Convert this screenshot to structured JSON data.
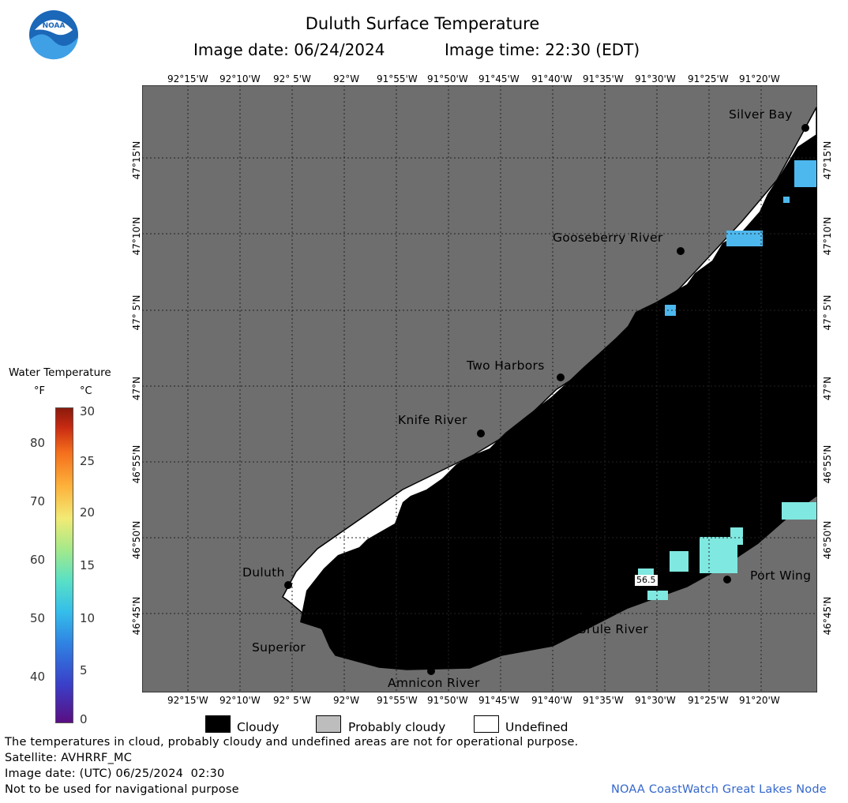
{
  "header": {
    "title": "Duluth Surface Temperature",
    "image_date": "Image date: 06/24/2024",
    "image_time": "Image time: 22:30 (EDT)",
    "logo_text": "NOAA"
  },
  "map": {
    "lon_ticks": [
      "92°15'W",
      "92°10'W",
      "92° 5'W",
      "92°W",
      "91°55'W",
      "91°50'W",
      "91°45'W",
      "91°40'W",
      "91°35'W",
      "91°30'W",
      "91°25'W",
      "91°20'W"
    ],
    "lat_ticks": [
      "47°15'N",
      "47°10'N",
      "47° 5'N",
      "47°N",
      "46°55'N",
      "46°50'N",
      "46°45'N"
    ],
    "places": [
      {
        "name": "Silver Bay"
      },
      {
        "name": "Gooseberry River"
      },
      {
        "name": "Two Harbors"
      },
      {
        "name": "Knife River"
      },
      {
        "name": "Duluth"
      },
      {
        "name": "Superior"
      },
      {
        "name": "Amnicon River"
      },
      {
        "name": "Brule River"
      },
      {
        "name": "Port Wing"
      }
    ],
    "temperature_label": "56.5",
    "colors": {
      "land": "#6e6e6e",
      "cloud": "#000000",
      "undefined": "#ffffff",
      "warm_water": "#7fe8e0",
      "cool_water": "#4db8ee"
    }
  },
  "colorbar": {
    "title": "Water Temperature",
    "unit_f": "°F",
    "unit_c": "°C",
    "f_ticks": [
      "80",
      "70",
      "60",
      "50",
      "40"
    ],
    "c_ticks": [
      "30",
      "25",
      "20",
      "15",
      "10",
      "5",
      "0"
    ]
  },
  "legend": {
    "cloudy": "Cloudy",
    "probably_cloudy": "Probably cloudy",
    "undefined": "Undefined",
    "colors": {
      "cloudy": "#000000",
      "probably_cloudy": "#bdbdbd",
      "undefined": "#ffffff"
    }
  },
  "footer": {
    "note1": "The temperatures in cloud, probably cloudy and undefined areas are not for operational purpose.",
    "satellite": "Satellite: AVHRRF_MC",
    "utc_date": "Image date: (UTC) 06/25/2024  02:30",
    "nav": "Not to be used for navigational purpose",
    "credit": "NOAA CoastWatch Great Lakes Node"
  }
}
